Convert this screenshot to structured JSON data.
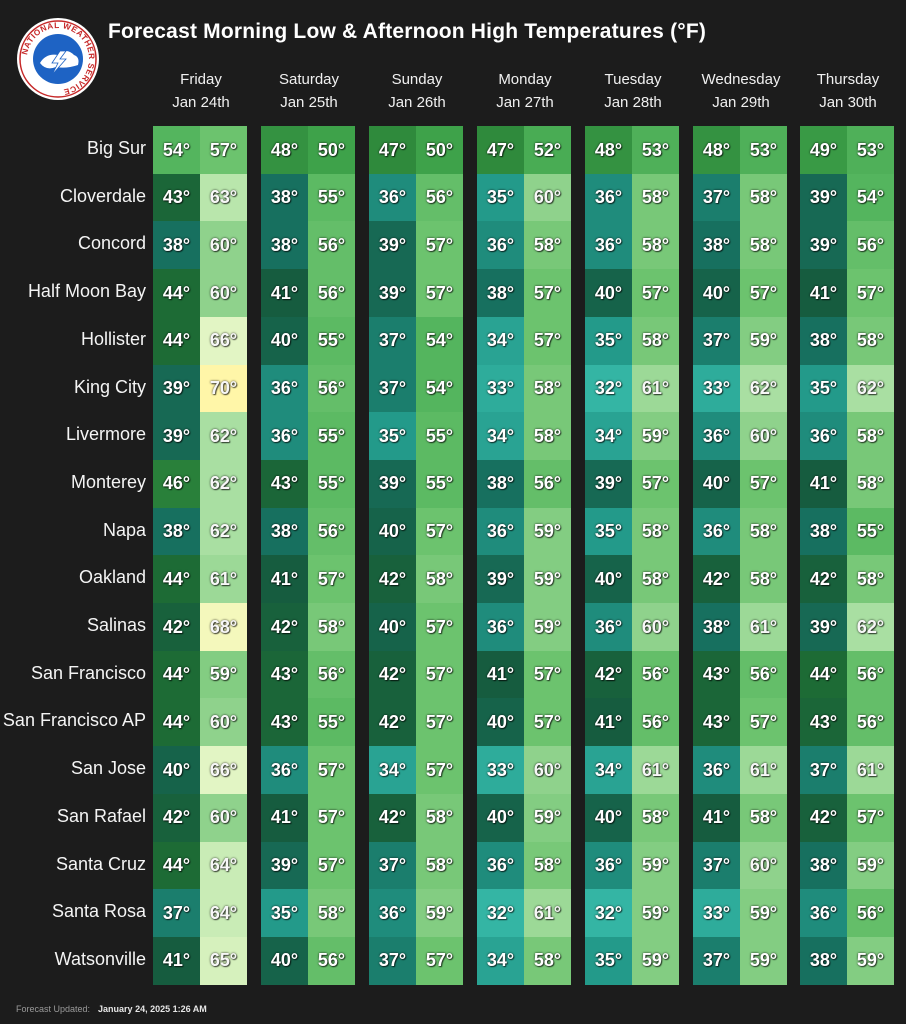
{
  "title": "Forecast Morning Low & Afternoon High Temperatures (°F)",
  "logo_text": "NATIONAL WEATHER SERVICE",
  "footer": {
    "label": "Forecast Updated:",
    "value": "January 24, 2025 1:26 AM"
  },
  "colors": {
    "background": "#1c1c1c",
    "scale": [
      {
        "t": 32,
        "c": "#34b5a4"
      },
      {
        "t": 35,
        "c": "#239a8a"
      },
      {
        "t": 38,
        "c": "#17705f"
      },
      {
        "t": 41,
        "c": "#165c3f"
      },
      {
        "t": 44,
        "c": "#1d6b35"
      },
      {
        "t": 47,
        "c": "#2f8a3c"
      },
      {
        "t": 50,
        "c": "#3ea24a"
      },
      {
        "t": 54,
        "c": "#54b55e"
      },
      {
        "t": 57,
        "c": "#6cc36e"
      },
      {
        "t": 60,
        "c": "#8fd28c"
      },
      {
        "t": 62,
        "c": "#a9dfa2"
      },
      {
        "t": 64,
        "c": "#c9ecb6"
      },
      {
        "t": 66,
        "c": "#e2f5c4"
      },
      {
        "t": 68,
        "c": "#f4f8bc"
      },
      {
        "t": 70,
        "c": "#fff6a8"
      }
    ]
  },
  "chart_data": {
    "type": "table",
    "title": "Forecast Morning Low & Afternoon High Temperatures (°F)",
    "unit": "°",
    "days": [
      {
        "day": "Friday",
        "date": "Jan 24th"
      },
      {
        "day": "Saturday",
        "date": "Jan 25th"
      },
      {
        "day": "Sunday",
        "date": "Jan 26th"
      },
      {
        "day": "Monday",
        "date": "Jan 27th"
      },
      {
        "day": "Tuesday",
        "date": "Jan 28th"
      },
      {
        "day": "Wednesday",
        "date": "Jan 29th"
      },
      {
        "day": "Thursday",
        "date": "Jan 30th"
      }
    ],
    "rows": [
      {
        "city": "Big Sur",
        "temps": [
          [
            54,
            57
          ],
          [
            48,
            50
          ],
          [
            47,
            50
          ],
          [
            47,
            52
          ],
          [
            48,
            53
          ],
          [
            48,
            53
          ],
          [
            49,
            53
          ]
        ]
      },
      {
        "city": "Cloverdale",
        "temps": [
          [
            43,
            63
          ],
          [
            38,
            55
          ],
          [
            36,
            56
          ],
          [
            35,
            60
          ],
          [
            36,
            58
          ],
          [
            37,
            58
          ],
          [
            39,
            54
          ]
        ]
      },
      {
        "city": "Concord",
        "temps": [
          [
            38,
            60
          ],
          [
            38,
            56
          ],
          [
            39,
            57
          ],
          [
            36,
            58
          ],
          [
            36,
            58
          ],
          [
            38,
            58
          ],
          [
            39,
            56
          ]
        ]
      },
      {
        "city": "Half Moon Bay",
        "temps": [
          [
            44,
            60
          ],
          [
            41,
            56
          ],
          [
            39,
            57
          ],
          [
            38,
            57
          ],
          [
            40,
            57
          ],
          [
            40,
            57
          ],
          [
            41,
            57
          ]
        ]
      },
      {
        "city": "Hollister",
        "temps": [
          [
            44,
            66
          ],
          [
            40,
            55
          ],
          [
            37,
            54
          ],
          [
            34,
            57
          ],
          [
            35,
            58
          ],
          [
            37,
            59
          ],
          [
            38,
            58
          ]
        ]
      },
      {
        "city": "King City",
        "temps": [
          [
            39,
            70
          ],
          [
            36,
            56
          ],
          [
            37,
            54
          ],
          [
            33,
            58
          ],
          [
            32,
            61
          ],
          [
            33,
            62
          ],
          [
            35,
            62
          ]
        ]
      },
      {
        "city": "Livermore",
        "temps": [
          [
            39,
            62
          ],
          [
            36,
            55
          ],
          [
            35,
            55
          ],
          [
            34,
            58
          ],
          [
            34,
            59
          ],
          [
            36,
            60
          ],
          [
            36,
            58
          ]
        ]
      },
      {
        "city": "Monterey",
        "temps": [
          [
            46,
            62
          ],
          [
            43,
            55
          ],
          [
            39,
            55
          ],
          [
            38,
            56
          ],
          [
            39,
            57
          ],
          [
            40,
            57
          ],
          [
            41,
            58
          ]
        ]
      },
      {
        "city": "Napa",
        "temps": [
          [
            38,
            62
          ],
          [
            38,
            56
          ],
          [
            40,
            57
          ],
          [
            36,
            59
          ],
          [
            35,
            58
          ],
          [
            36,
            58
          ],
          [
            38,
            55
          ]
        ]
      },
      {
        "city": "Oakland",
        "temps": [
          [
            44,
            61
          ],
          [
            41,
            57
          ],
          [
            42,
            58
          ],
          [
            39,
            59
          ],
          [
            40,
            58
          ],
          [
            42,
            58
          ],
          [
            42,
            58
          ]
        ]
      },
      {
        "city": "Salinas",
        "temps": [
          [
            42,
            68
          ],
          [
            42,
            58
          ],
          [
            40,
            57
          ],
          [
            36,
            59
          ],
          [
            36,
            60
          ],
          [
            38,
            61
          ],
          [
            39,
            62
          ]
        ]
      },
      {
        "city": "San Francisco",
        "temps": [
          [
            44,
            59
          ],
          [
            43,
            56
          ],
          [
            42,
            57
          ],
          [
            41,
            57
          ],
          [
            42,
            56
          ],
          [
            43,
            56
          ],
          [
            44,
            56
          ]
        ]
      },
      {
        "city": "San Francisco AP",
        "temps": [
          [
            44,
            60
          ],
          [
            43,
            55
          ],
          [
            42,
            57
          ],
          [
            40,
            57
          ],
          [
            41,
            56
          ],
          [
            43,
            57
          ],
          [
            43,
            56
          ]
        ]
      },
      {
        "city": "San Jose",
        "temps": [
          [
            40,
            66
          ],
          [
            36,
            57
          ],
          [
            34,
            57
          ],
          [
            33,
            60
          ],
          [
            34,
            61
          ],
          [
            36,
            61
          ],
          [
            37,
            61
          ]
        ]
      },
      {
        "city": "San Rafael",
        "temps": [
          [
            42,
            60
          ],
          [
            41,
            57
          ],
          [
            42,
            58
          ],
          [
            40,
            59
          ],
          [
            40,
            58
          ],
          [
            41,
            58
          ],
          [
            42,
            57
          ]
        ]
      },
      {
        "city": "Santa Cruz",
        "temps": [
          [
            44,
            64
          ],
          [
            39,
            57
          ],
          [
            37,
            58
          ],
          [
            36,
            58
          ],
          [
            36,
            59
          ],
          [
            37,
            60
          ],
          [
            38,
            59
          ]
        ]
      },
      {
        "city": "Santa Rosa",
        "temps": [
          [
            37,
            64
          ],
          [
            35,
            58
          ],
          [
            36,
            59
          ],
          [
            32,
            61
          ],
          [
            32,
            59
          ],
          [
            33,
            59
          ],
          [
            36,
            56
          ]
        ]
      },
      {
        "city": "Watsonville",
        "temps": [
          [
            41,
            65
          ],
          [
            40,
            56
          ],
          [
            37,
            57
          ],
          [
            34,
            58
          ],
          [
            35,
            59
          ],
          [
            37,
            59
          ],
          [
            38,
            59
          ]
        ]
      }
    ]
  }
}
